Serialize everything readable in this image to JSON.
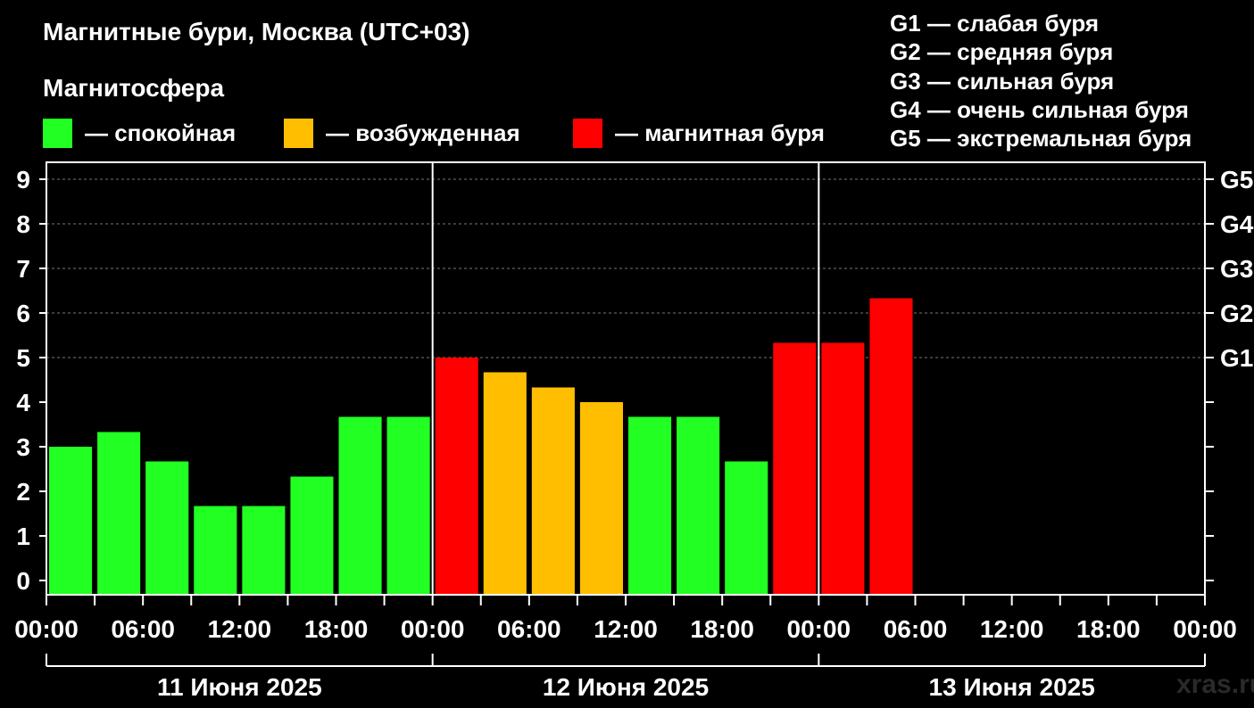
{
  "chart_data": {
    "type": "bar",
    "title": "Магнитные бури, Москва (UTC+03)",
    "subtitle": "Магнитосфера",
    "legend": [
      {
        "key": "quiet",
        "label": "— спокойная",
        "color": "#22ff22"
      },
      {
        "key": "excited",
        "label": "— возбужденная",
        "color": "#ffbf00"
      },
      {
        "key": "storm",
        "label": "— магнитная буря",
        "color": "#ff0000"
      }
    ],
    "g_legend": [
      "G1 — слабая буря",
      "G2 — средняя буря",
      "G3 — сильная буря",
      "G4 — очень сильная буря",
      "G5 — экстремальная буря"
    ],
    "ylim": [
      0,
      9
    ],
    "y_ticks": [
      "0",
      "1",
      "2",
      "3",
      "4",
      "5",
      "6",
      "7",
      "8",
      "9"
    ],
    "g_ticks": [
      {
        "label": "G1",
        "value": 5
      },
      {
        "label": "G2",
        "value": 6
      },
      {
        "label": "G3",
        "value": 7
      },
      {
        "label": "G4",
        "value": 8
      },
      {
        "label": "G5",
        "value": 9
      }
    ],
    "x_tick_labels": [
      "00:00",
      "06:00",
      "12:00",
      "18:00",
      "00:00",
      "06:00",
      "12:00",
      "18:00",
      "00:00",
      "06:00",
      "12:00",
      "18:00",
      "00:00"
    ],
    "days": [
      "11 Июня 2025",
      "12 Июня 2025",
      "13 Июня 2025"
    ],
    "intervals_per_day": 8,
    "series": [
      {
        "values": [
          3.0,
          3.33,
          2.67,
          1.67,
          1.67,
          2.33,
          3.67,
          3.67,
          5.0,
          4.67,
          4.33,
          4.0,
          3.67,
          3.67,
          2.67,
          5.33,
          5.33,
          6.33
        ],
        "levels": [
          "quiet",
          "quiet",
          "quiet",
          "quiet",
          "quiet",
          "quiet",
          "quiet",
          "quiet",
          "storm",
          "excited",
          "excited",
          "excited",
          "quiet",
          "quiet",
          "quiet",
          "storm",
          "storm",
          "storm"
        ]
      }
    ],
    "grid": true,
    "watermark": "xras.ru"
  }
}
